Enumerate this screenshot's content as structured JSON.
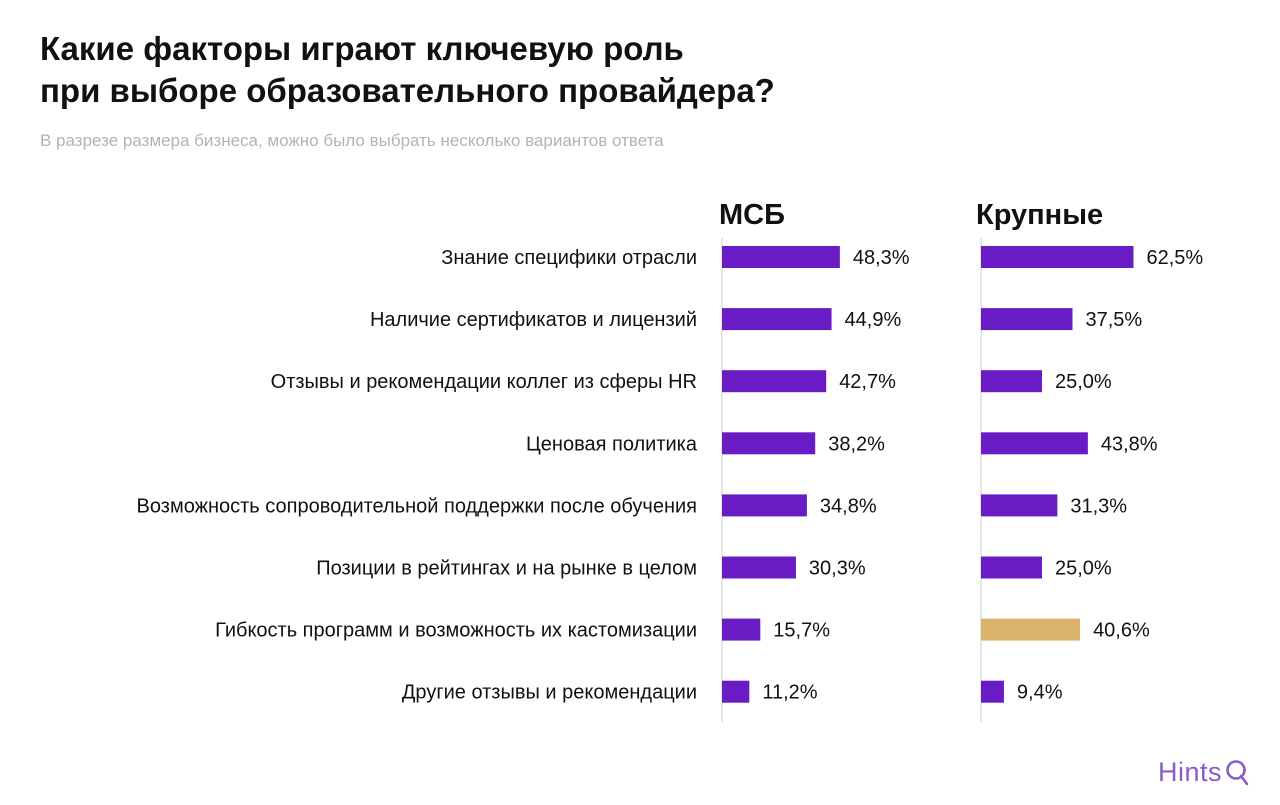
{
  "header": {
    "title_line1": "Какие факторы играют ключевую роль",
    "title_line2": "при выборе образовательного провайдера?",
    "subtitle": "В разрезе размера бизнеса, можно было выбрать несколько вариантов ответа"
  },
  "brand": {
    "logo_text": "Hints",
    "color": "#8a5cc7"
  },
  "colors": {
    "bar": "#6a1cc4",
    "highlight": "#dcb36b",
    "axis": "#dddddd"
  },
  "chart_data": {
    "type": "bar",
    "orientation": "horizontal",
    "categories": [
      "Знание специфики отрасли",
      "Наличие сертификатов и лицензий",
      "Отзывы и рекомендации коллег из сферы HR",
      "Ценовая политика",
      "Возможность сопроводительной поддержки после обучения",
      "Позиции в рейтингах и на рынке в целом",
      "Гибкость программ и возможность их кастомизации",
      "Другие отзывы и рекомендации"
    ],
    "series": [
      {
        "name": "МСБ",
        "values": [
          48.3,
          44.9,
          42.7,
          38.2,
          34.8,
          30.3,
          15.7,
          11.2
        ],
        "labels": [
          "48,3%",
          "44,9%",
          "42,7%",
          "38,2%",
          "34,8%",
          "30,3%",
          "15,7%",
          "11,2%"
        ],
        "highlight_index": -1
      },
      {
        "name": "Крупные",
        "values": [
          62.5,
          37.5,
          25.0,
          43.8,
          31.3,
          25.0,
          40.6,
          9.4
        ],
        "labels": [
          "62,5%",
          "37,5%",
          "25,0%",
          "43,8%",
          "31,3%",
          "25,0%",
          "40,6%",
          "9,4%"
        ],
        "highlight_index": 6
      }
    ],
    "xlim": [
      0,
      100
    ],
    "grid": false,
    "legend": "none"
  }
}
